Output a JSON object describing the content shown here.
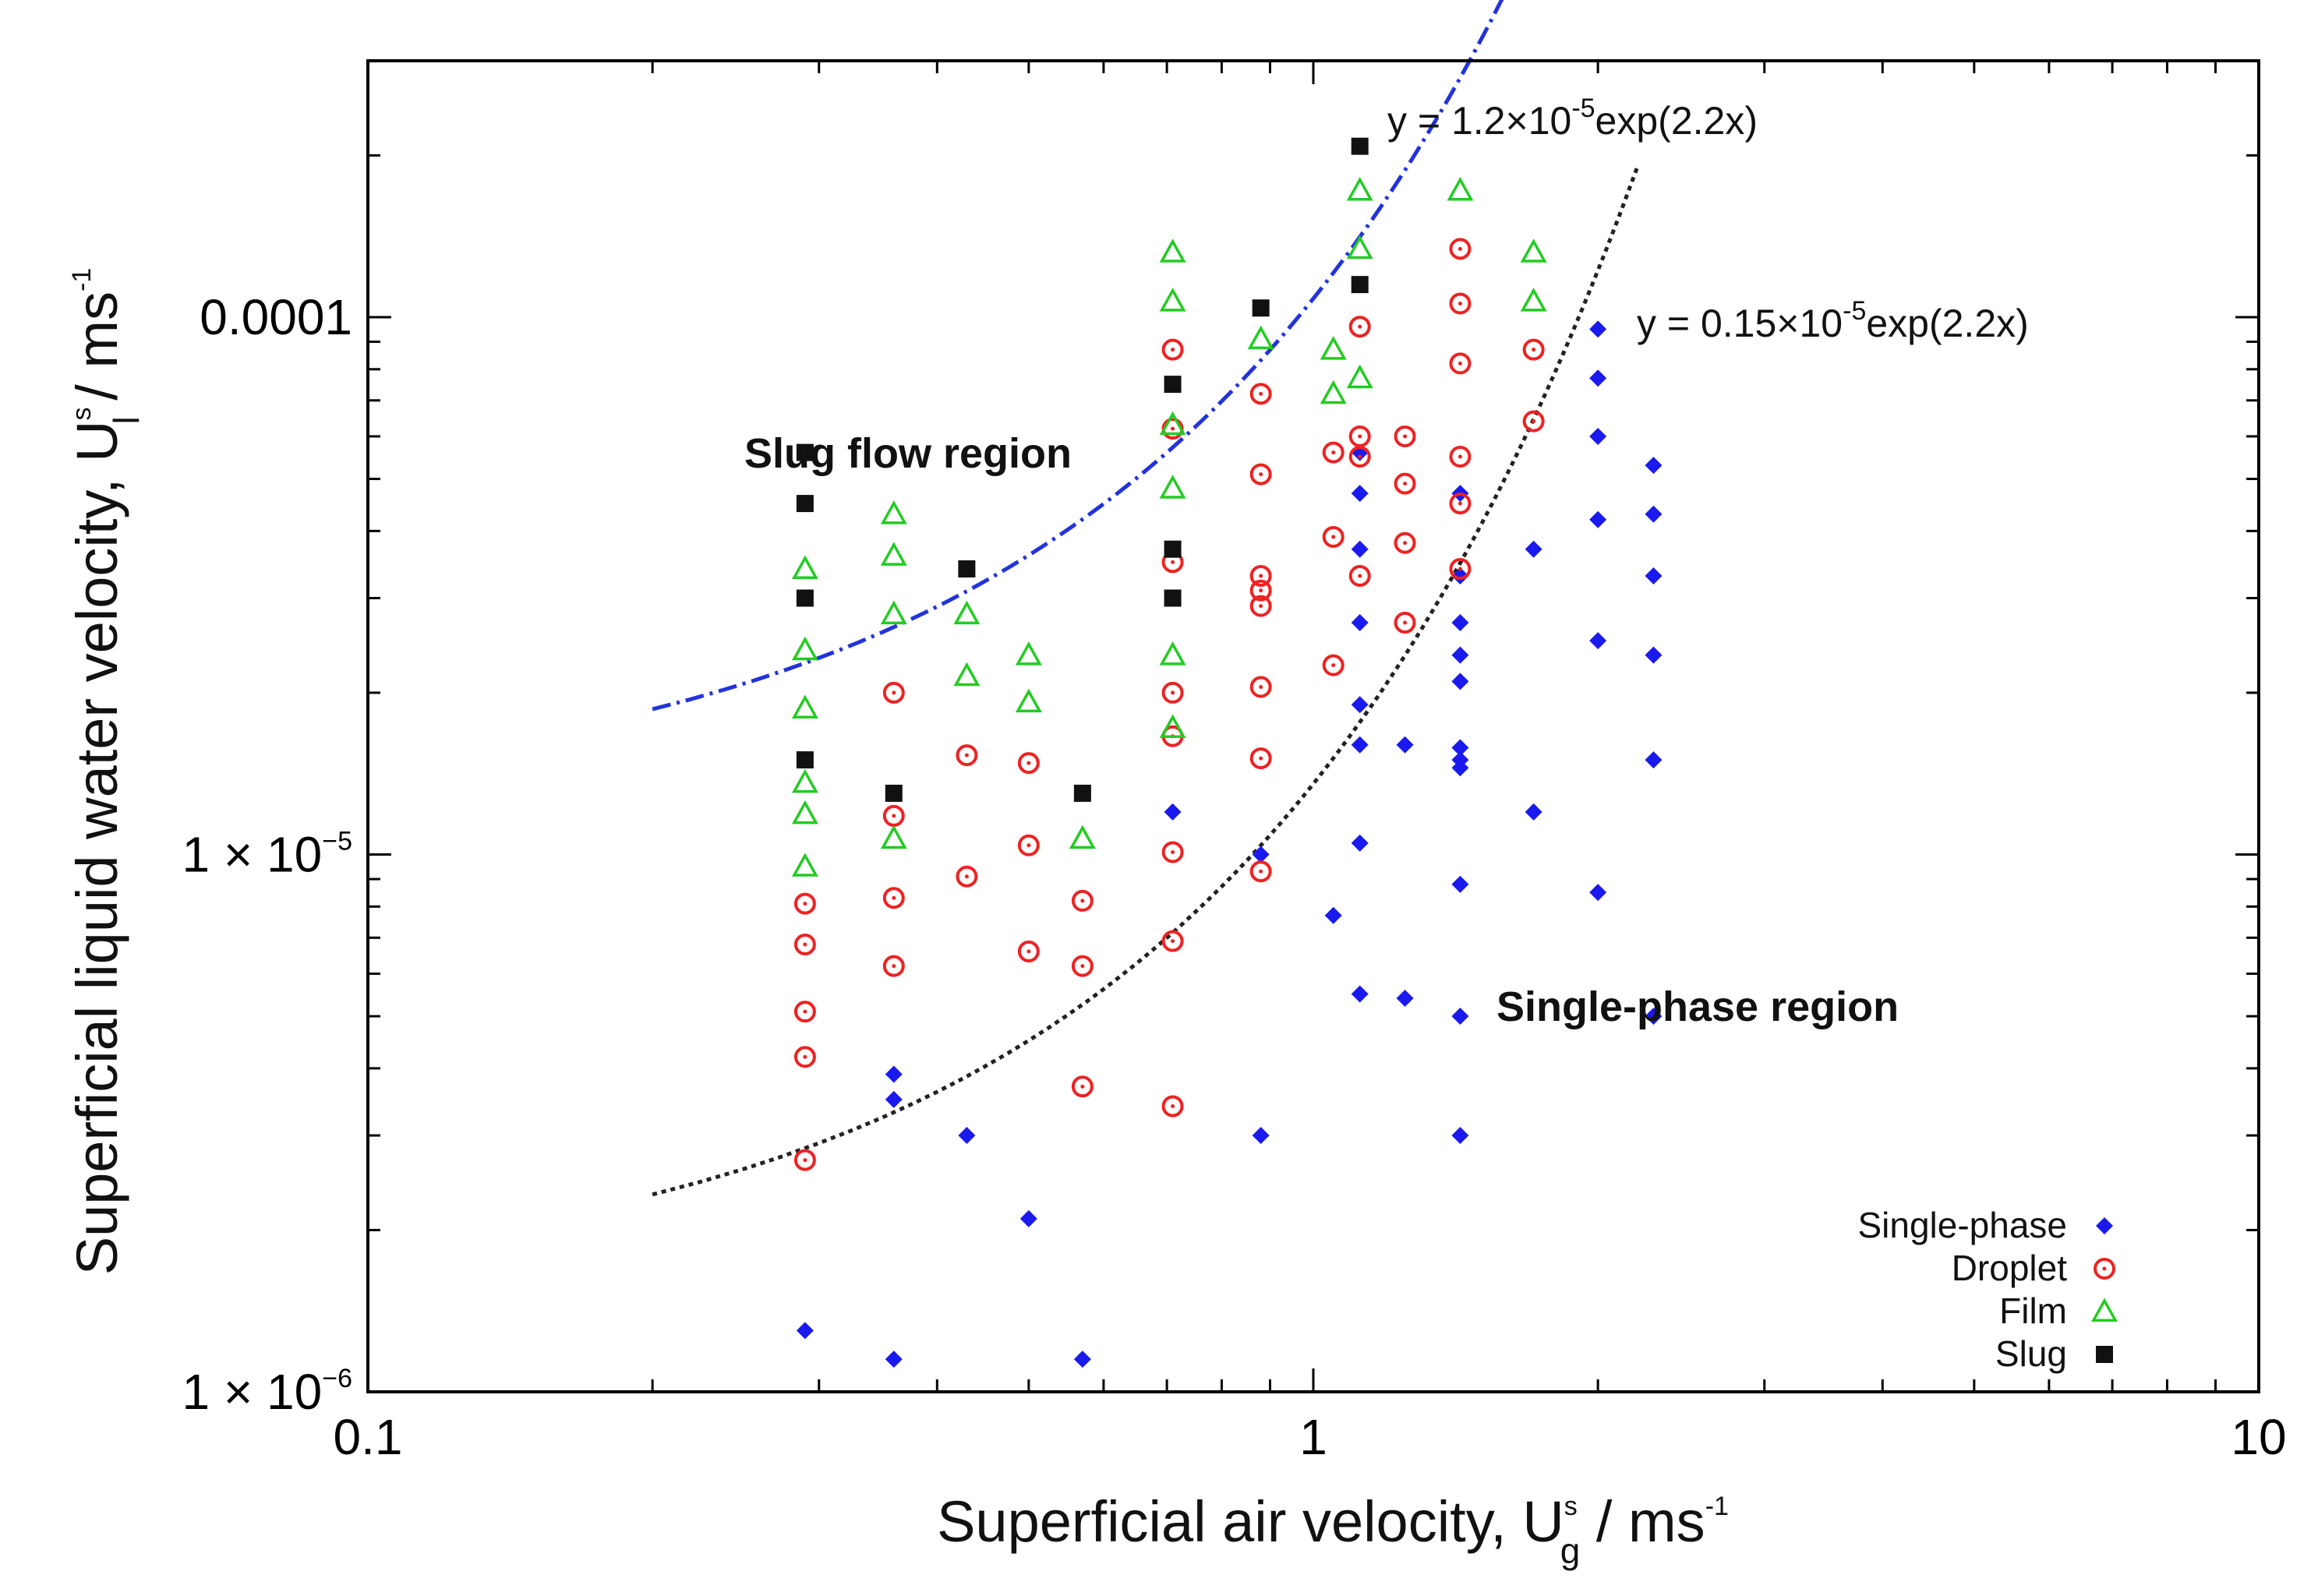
{
  "chart_data": {
    "type": "scatter",
    "x_scale": "log",
    "y_scale": "log",
    "xlim": [
      0.1,
      10
    ],
    "ylim": [
      1e-06,
      0.0003
    ],
    "x_ticks": [
      {
        "value": 0.1,
        "label": "0.1"
      },
      {
        "value": 1,
        "label": "1"
      },
      {
        "value": 10,
        "label": "10"
      }
    ],
    "y_ticks": [
      {
        "value": 0.0001,
        "label": "0.0001"
      },
      {
        "value": 1e-05,
        "label_mant": "1 × 10",
        "label_exp": "−5"
      },
      {
        "value": 1e-06,
        "label_mant": "1 × 10",
        "label_exp": "−6"
      }
    ],
    "xlabel": {
      "main": "Superficial air velocity, U",
      "sup": "s",
      "sub": "g",
      "tail": " / ms",
      "tail_sup": "-1"
    },
    "ylabel": {
      "main": "Superficial liquid water velocity, U",
      "sup": "s",
      "sub": "l",
      "tail": " / ms",
      "tail_sup": "-1"
    },
    "curves": [
      {
        "name": "slug-boundary",
        "coef": 1.2e-05,
        "rate": 2.2,
        "x_range": [
          0.2,
          1.7
        ],
        "color": "#2233dd",
        "dash": "24 8 4 8",
        "label": {
          "pre": "y = 1.2×10",
          "exp": "-5",
          "post": "exp(2.2x)"
        }
      },
      {
        "name": "single-phase-boundary",
        "coef": 1.5e-06,
        "rate": 2.2,
        "x_range": [
          0.2,
          2.2
        ],
        "color": "#222222",
        "dash": "6 6",
        "label": {
          "pre": "y = 0.15×10",
          "exp": "-5",
          "post": "exp(2.2x)"
        }
      }
    ],
    "region_labels": {
      "slug": "Slug flow region",
      "single": "Single-phase region"
    },
    "series": [
      {
        "name": "Single-phase",
        "marker": "diamond",
        "color": "#1a1aee",
        "points": [
          [
            0.29,
            1.3e-06
          ],
          [
            0.36,
            3.9e-06
          ],
          [
            0.36,
            3.5e-06
          ],
          [
            0.36,
            1.15e-06
          ],
          [
            0.43,
            3e-06
          ],
          [
            0.5,
            2.1e-06
          ],
          [
            0.57,
            1.15e-06
          ],
          [
            0.71,
            1.2e-05
          ],
          [
            0.88,
            3e-06
          ],
          [
            0.88,
            1e-05
          ],
          [
            1.05,
            7.7e-06
          ],
          [
            1.12,
            5.6e-05
          ],
          [
            1.12,
            4.7e-05
          ],
          [
            1.12,
            3.7e-05
          ],
          [
            1.12,
            2.7e-05
          ],
          [
            1.12,
            1.9e-05
          ],
          [
            1.12,
            1.6e-05
          ],
          [
            1.12,
            1.05e-05
          ],
          [
            1.12,
            5.5e-06
          ],
          [
            1.25,
            1.6e-05
          ],
          [
            1.25,
            5.4e-06
          ],
          [
            1.43,
            4.7e-05
          ],
          [
            1.43,
            3.3e-05
          ],
          [
            1.43,
            2.7e-05
          ],
          [
            1.43,
            2.35e-05
          ],
          [
            1.43,
            2.1e-05
          ],
          [
            1.43,
            1.58e-05
          ],
          [
            1.43,
            1.5e-05
          ],
          [
            1.43,
            1.45e-05
          ],
          [
            1.43,
            8.8e-06
          ],
          [
            1.43,
            5e-06
          ],
          [
            1.43,
            3e-06
          ],
          [
            1.71,
            3.7e-05
          ],
          [
            1.71,
            1.2e-05
          ],
          [
            2.0,
            9.5e-05
          ],
          [
            2.0,
            7.7e-05
          ],
          [
            2.0,
            6e-05
          ],
          [
            2.0,
            4.2e-05
          ],
          [
            2.0,
            2.5e-05
          ],
          [
            2.0,
            8.5e-06
          ],
          [
            2.29,
            5.3e-05
          ],
          [
            2.29,
            4.3e-05
          ],
          [
            2.29,
            3.3e-05
          ],
          [
            2.29,
            2.35e-05
          ],
          [
            2.29,
            1.5e-05
          ],
          [
            2.29,
            5e-06
          ]
        ]
      },
      {
        "name": "Droplet",
        "marker": "circle",
        "color": "#ee2222",
        "points": [
          [
            0.29,
            8.1e-06
          ],
          [
            0.29,
            6.8e-06
          ],
          [
            0.29,
            5.1e-06
          ],
          [
            0.29,
            4.2e-06
          ],
          [
            0.29,
            2.7e-06
          ],
          [
            0.36,
            1.18e-05
          ],
          [
            0.36,
            8.3e-06
          ],
          [
            0.36,
            6.2e-06
          ],
          [
            0.36,
            2e-05
          ],
          [
            0.43,
            1.53e-05
          ],
          [
            0.43,
            9.1e-06
          ],
          [
            0.5,
            1.48e-05
          ],
          [
            0.5,
            1.04e-05
          ],
          [
            0.5,
            6.6e-06
          ],
          [
            0.57,
            8.2e-06
          ],
          [
            0.57,
            6.2e-06
          ],
          [
            0.57,
            3.7e-06
          ],
          [
            0.71,
            8.7e-05
          ],
          [
            0.71,
            6.2e-05
          ],
          [
            0.71,
            3.5e-05
          ],
          [
            0.71,
            2e-05
          ],
          [
            0.71,
            1.66e-05
          ],
          [
            0.71,
            1.01e-05
          ],
          [
            0.71,
            6.9e-06
          ],
          [
            0.71,
            3.4e-06
          ],
          [
            0.88,
            7.2e-05
          ],
          [
            0.88,
            5.1e-05
          ],
          [
            0.88,
            3.3e-05
          ],
          [
            0.88,
            3.1e-05
          ],
          [
            0.88,
            2.9e-05
          ],
          [
            0.88,
            2.05e-05
          ],
          [
            0.88,
            1.51e-05
          ],
          [
            0.88,
            9.3e-06
          ],
          [
            1.05,
            5.6e-05
          ],
          [
            1.05,
            3.9e-05
          ],
          [
            1.05,
            2.25e-05
          ],
          [
            1.12,
            9.6e-05
          ],
          [
            1.12,
            6e-05
          ],
          [
            1.12,
            5.5e-05
          ],
          [
            1.12,
            3.3e-05
          ],
          [
            1.25,
            6e-05
          ],
          [
            1.25,
            4.9e-05
          ],
          [
            1.25,
            3.8e-05
          ],
          [
            1.25,
            2.7e-05
          ],
          [
            1.43,
            0.000134
          ],
          [
            1.43,
            0.000106
          ],
          [
            1.43,
            8.2e-05
          ],
          [
            1.43,
            5.5e-05
          ],
          [
            1.43,
            4.5e-05
          ],
          [
            1.43,
            3.4e-05
          ],
          [
            1.71,
            8.7e-05
          ],
          [
            1.71,
            6.4e-05
          ]
        ]
      },
      {
        "name": "Film",
        "marker": "triangle",
        "color": "#22cc22",
        "points": [
          [
            0.29,
            3.4e-05
          ],
          [
            0.29,
            2.4e-05
          ],
          [
            0.29,
            1.87e-05
          ],
          [
            0.29,
            1.36e-05
          ],
          [
            0.29,
            1.19e-05
          ],
          [
            0.29,
            9.5e-06
          ],
          [
            0.36,
            4.3e-05
          ],
          [
            0.36,
            3.6e-05
          ],
          [
            0.36,
            2.8e-05
          ],
          [
            0.36,
            1.07e-05
          ],
          [
            0.43,
            2.8e-05
          ],
          [
            0.43,
            2.15e-05
          ],
          [
            0.5,
            2.35e-05
          ],
          [
            0.5,
            1.92e-05
          ],
          [
            0.57,
            1.07e-05
          ],
          [
            0.71,
            0.000132
          ],
          [
            0.71,
            0.000107
          ],
          [
            0.71,
            6.3e-05
          ],
          [
            0.71,
            4.8e-05
          ],
          [
            0.71,
            2.35e-05
          ],
          [
            0.71,
            1.72e-05
          ],
          [
            0.88,
            9.1e-05
          ],
          [
            1.05,
            8.7e-05
          ],
          [
            1.05,
            7.2e-05
          ],
          [
            1.12,
            0.000172
          ],
          [
            1.12,
            0.000134
          ],
          [
            1.12,
            7.7e-05
          ],
          [
            1.43,
            0.000172
          ],
          [
            1.71,
            0.000132
          ],
          [
            1.71,
            0.000107
          ]
        ]
      },
      {
        "name": "Slug",
        "marker": "square",
        "color": "#111111",
        "points": [
          [
            0.29,
            5.6e-05
          ],
          [
            0.29,
            4.5e-05
          ],
          [
            0.29,
            3e-05
          ],
          [
            0.29,
            1.5e-05
          ],
          [
            0.36,
            1.3e-05
          ],
          [
            0.43,
            3.4e-05
          ],
          [
            0.57,
            1.3e-05
          ],
          [
            0.71,
            7.5e-05
          ],
          [
            0.71,
            3.7e-05
          ],
          [
            0.71,
            3e-05
          ],
          [
            0.88,
            0.000104
          ],
          [
            1.12,
            0.000208
          ],
          [
            1.12,
            0.000115
          ]
        ]
      }
    ],
    "legend": {
      "position": "bottom-right"
    }
  }
}
